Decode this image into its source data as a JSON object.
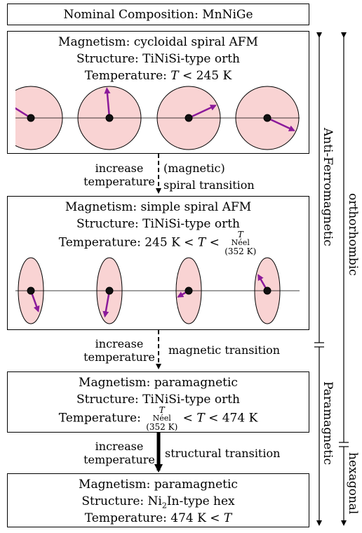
{
  "title_box": {
    "text": "Nominal Composition: MnNiGe"
  },
  "states": [
    {
      "magnetism": "Magnetism: cycloidal spiral AFM",
      "structure": "Structure: TiNiSi-type orth",
      "temperature": {
        "prefix": "Temperature: ",
        "var": "T",
        "rest": " < 245 K"
      }
    },
    {
      "magnetism": "Magnetism: simple spiral AFM",
      "structure": "Structure: TiNiSi-type orth",
      "temperature": {
        "prefix": "Temperature: 245 K < ",
        "var": "T",
        "rest": " <",
        "neel_top": "T",
        "neel_sub": "Néel",
        "neel_bottom": "(352 K)"
      }
    },
    {
      "magnetism": "Magnetism: paramagnetic",
      "structure": "Structure: TiNiSi-type orth",
      "temperature": {
        "prefix": "Temperature:",
        "neel_top": "T",
        "neel_sub": "Néel",
        "neel_bottom": "(352 K)",
        "mid": " < ",
        "var": "T",
        "rest": " < 474 K"
      }
    },
    {
      "magnetism": "Magnetism: paramagnetic",
      "structure_prefix": "Structure: Ni",
      "structure_sub": "2",
      "structure_suffix": "In-type hex",
      "temperature": {
        "prefix": "Temperature: 474 K < ",
        "var": "T"
      }
    }
  ],
  "transitions": [
    {
      "left_line1": "increase",
      "left_line2": "temperature",
      "right_line1": "(magnetic)",
      "right_line2": "spiral transition",
      "style": "dashed"
    },
    {
      "left_line1": "increase",
      "left_line2": "temperature",
      "right_line1": "magnetic transition",
      "style": "dashed"
    },
    {
      "left_line1": "increase",
      "left_line2": "temperature",
      "right_line1": "structural transition",
      "style": "bold"
    }
  ],
  "side_labels": {
    "anti_ferromagnetic": "Anti-Ferromagnetic",
    "paramagnetic": "Paramagnetic",
    "orthorhombic": "orthorhombic",
    "hexagonal": "hexagonal"
  },
  "colors": {
    "disk_fill": "#f9d3d3",
    "spin_arrow": "#8b1a9a"
  },
  "spin_panels": [
    {
      "shape": "circle",
      "arrow_angles_deg": [
        148,
        95,
        25,
        -25
      ]
    },
    {
      "shape": "ellipse",
      "arrow_angles_deg": [
        -70,
        -100,
        -150,
        120
      ]
    }
  ]
}
